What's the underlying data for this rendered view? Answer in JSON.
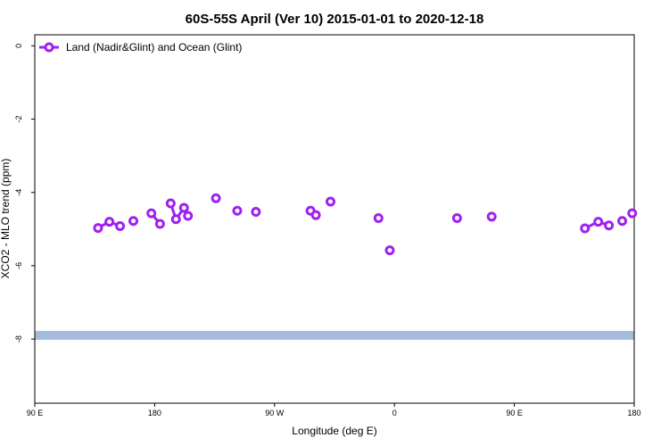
{
  "chart_data": {
    "type": "line",
    "title": "60S-55S April (Ver 10)   2015-01-01 to 2020-12-18",
    "xlabel": "Longitude (deg E)",
    "ylabel": "XCO2 - MLO trend (ppm)",
    "xlim": [
      90,
      540
    ],
    "ylim": [
      -9.75,
      0.3
    ],
    "x_ticks": [
      {
        "value": 90,
        "label": "90 E"
      },
      {
        "value": 180,
        "label": "180"
      },
      {
        "value": 270,
        "label": "90 W"
      },
      {
        "value": 360,
        "label": "0"
      },
      {
        "value": 450,
        "label": "90 E"
      },
      {
        "value": 540,
        "label": "180"
      }
    ],
    "y_ticks": [
      {
        "value": 0,
        "label": "0"
      },
      {
        "value": -2,
        "label": "-2"
      },
      {
        "value": -4,
        "label": "-4"
      },
      {
        "value": -6,
        "label": "-6"
      },
      {
        "value": -8,
        "label": "-8"
      }
    ],
    "legend": {
      "position": "top-left"
    },
    "reference_band": {
      "y_center": -7.9,
      "y_halfwidth": 0.12,
      "color": "#a4bbdd"
    },
    "series": [
      {
        "name": "Land (Nadir&Glint) and Ocean (Glint)",
        "color": "#a020f0",
        "segments": [
          [
            {
              "x": 137.5,
              "y": -4.97
            },
            {
              "x": 146,
              "y": -4.8
            },
            {
              "x": 154,
              "y": -4.92
            }
          ],
          [
            {
              "x": 164,
              "y": -4.78
            }
          ],
          [
            {
              "x": 177.5,
              "y": -4.57
            },
            {
              "x": 184,
              "y": -4.86
            }
          ],
          [
            {
              "x": 192,
              "y": -4.3
            },
            {
              "x": 196,
              "y": -4.73
            },
            {
              "x": 202,
              "y": -4.42
            },
            {
              "x": 205,
              "y": -4.64
            }
          ],
          [
            {
              "x": 226,
              "y": -4.16
            }
          ],
          [
            {
              "x": 242,
              "y": -4.5
            }
          ],
          [
            {
              "x": 256,
              "y": -4.53
            }
          ],
          [
            {
              "x": 297,
              "y": -4.5
            },
            {
              "x": 301,
              "y": -4.62
            }
          ],
          [
            {
              "x": 312,
              "y": -4.25
            }
          ],
          [
            {
              "x": 348,
              "y": -4.7
            }
          ],
          [
            {
              "x": 356.5,
              "y": -5.58
            }
          ],
          [
            {
              "x": 407,
              "y": -4.7
            }
          ],
          [
            {
              "x": 433,
              "y": -4.66
            }
          ],
          [
            {
              "x": 503,
              "y": -4.98
            },
            {
              "x": 513,
              "y": -4.8
            },
            {
              "x": 521,
              "y": -4.9
            }
          ],
          [
            {
              "x": 531,
              "y": -4.78
            }
          ],
          [
            {
              "x": 538.5,
              "y": -4.57
            }
          ]
        ]
      }
    ]
  }
}
